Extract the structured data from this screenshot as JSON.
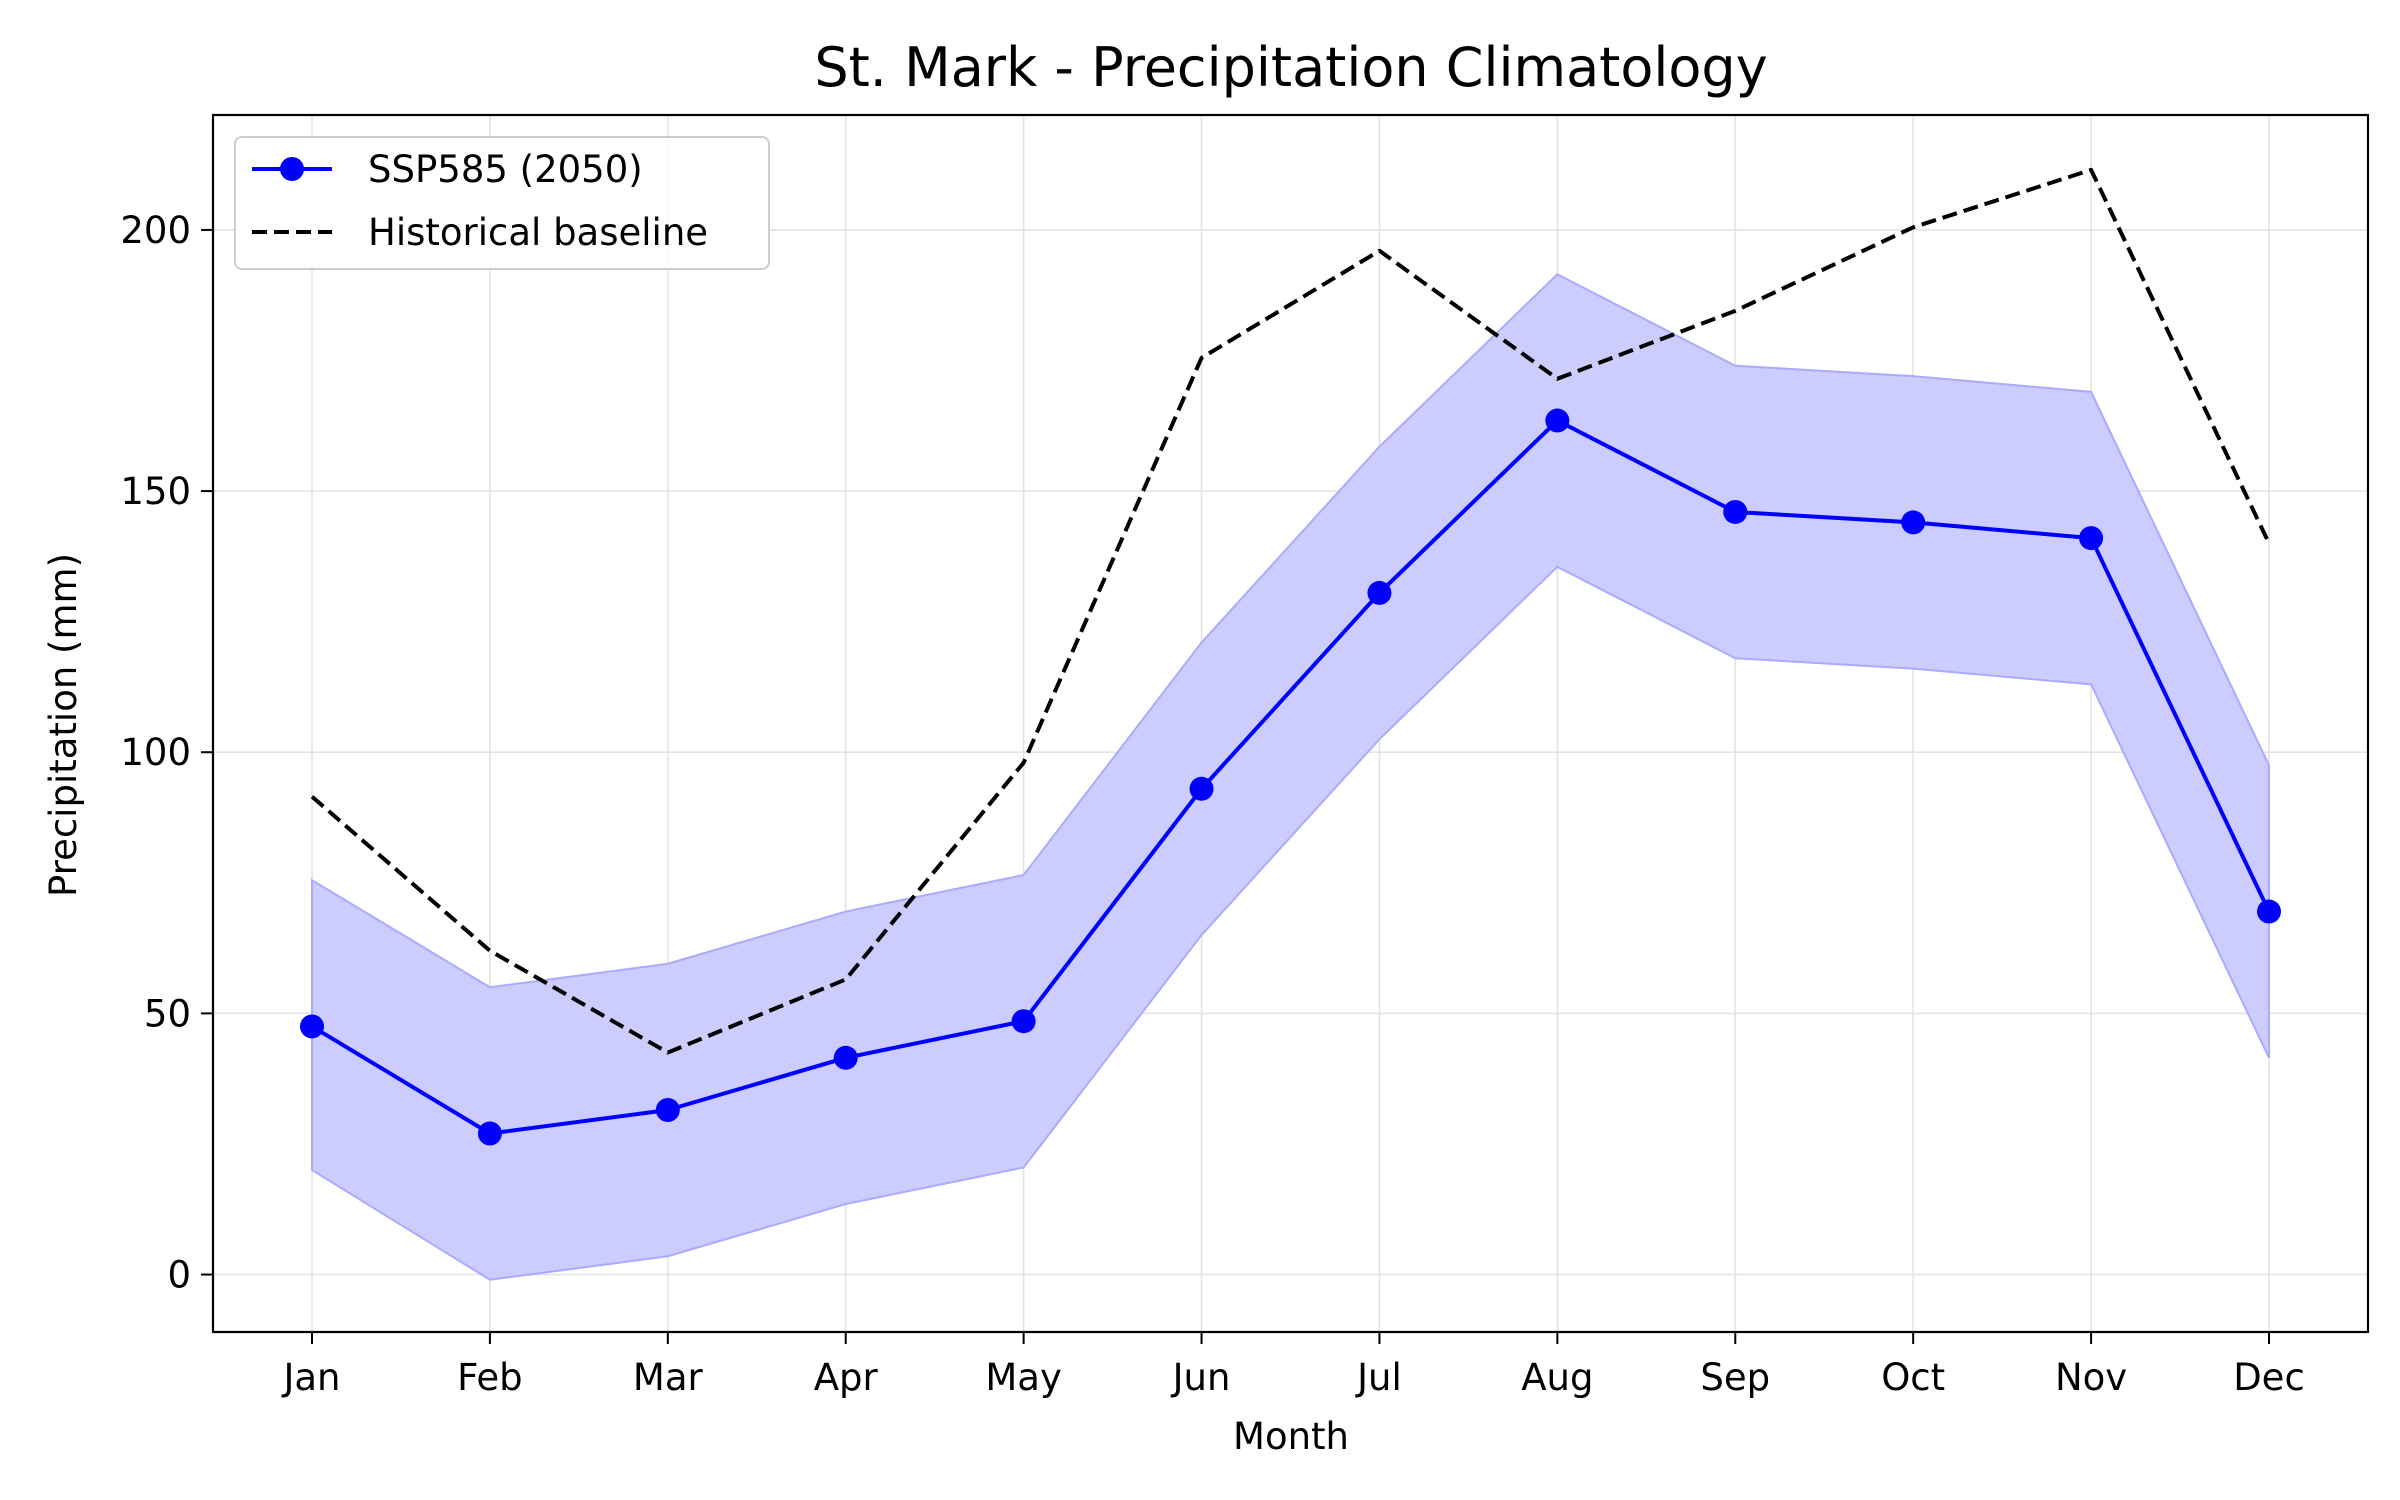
{
  "chart_data": {
    "type": "line",
    "title": "St. Mark - Precipitation Climatology",
    "xlabel": "Month",
    "ylabel": "Precipitation (mm)",
    "categories": [
      "Jan",
      "Feb",
      "Mar",
      "Apr",
      "May",
      "Jun",
      "Jul",
      "Aug",
      "Sep",
      "Oct",
      "Nov",
      "Dec"
    ],
    "ylim": [
      -11,
      222
    ],
    "yticks": [
      0,
      50,
      100,
      150,
      200
    ],
    "grid": true,
    "legend_position": "top-left",
    "series": [
      {
        "name": "SSP585 (2050)",
        "style": "solid-markers",
        "color": "#0000ff",
        "values": [
          47.5,
          27,
          31.5,
          41.5,
          48.5,
          93,
          130.5,
          163.5,
          146,
          144,
          141,
          69.5
        ],
        "band_lower": [
          20,
          -1,
          3.5,
          13.5,
          20.5,
          65,
          102.5,
          135.5,
          118,
          116,
          113,
          41.5
        ],
        "band_upper": [
          75.5,
          55,
          59.5,
          69.5,
          76.5,
          121,
          158.5,
          191.5,
          174,
          172,
          169,
          97.5
        ],
        "band_color": "#ccccff"
      },
      {
        "name": "Historical baseline",
        "style": "dashed",
        "color": "#000000",
        "values": [
          91.5,
          62,
          42.5,
          56.5,
          98,
          175.5,
          196,
          171.5,
          184.5,
          200.5,
          211.5,
          140
        ]
      }
    ]
  }
}
